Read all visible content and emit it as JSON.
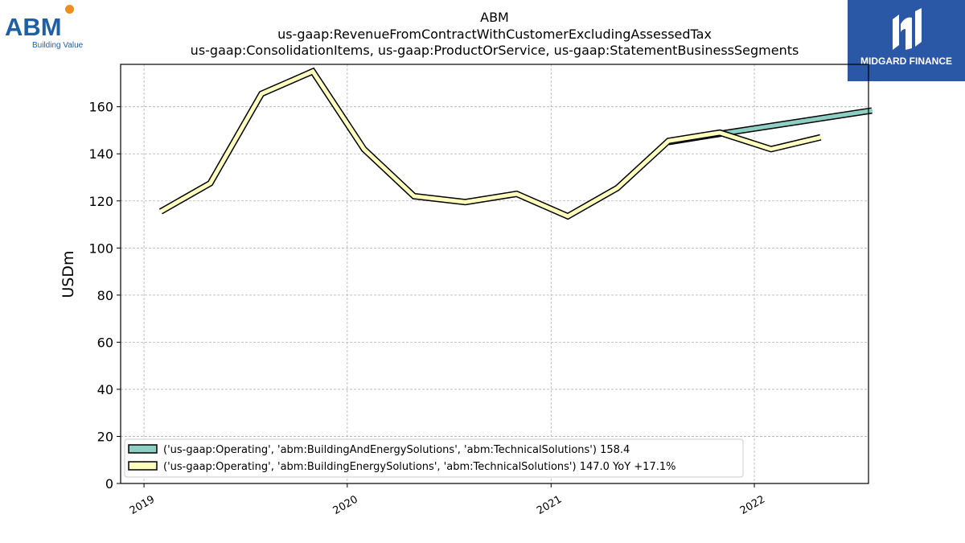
{
  "brand": {
    "company_logo_text": "ABM",
    "company_tagline": "Building Value",
    "publisher_logo_text": "MIDGARD FINANCE"
  },
  "colors": {
    "series_1": "#8ecfc4",
    "series_2": "#ffffbe",
    "outline": "#000000",
    "grid": "#b0b0b0",
    "abm_blue": "#1f5fa8",
    "abm_orange": "#f28c1e",
    "midgard_blue": "#2a57a6"
  },
  "chart_data": {
    "type": "line",
    "title": [
      "ABM",
      "us-gaap:RevenueFromContractWithCustomerExcludingAssessedTax",
      "us-gaap:ConsolidationItems, us-gaap:ProductOrService, us-gaap:StatementBusinessSegments"
    ],
    "xlabel": "",
    "ylabel": "USDm",
    "xlim": [
      "2018-11-20",
      "2022-07-25"
    ],
    "ylim": [
      0,
      178
    ],
    "xticks": [
      "2019",
      "2020",
      "2021",
      "2022"
    ],
    "xtick_dates": [
      "2019-01-01",
      "2020-01-01",
      "2021-01-01",
      "2022-01-01"
    ],
    "yticks": [
      0,
      20,
      40,
      60,
      80,
      100,
      120,
      140,
      160
    ],
    "grid": true,
    "legend_position": "lower-left",
    "series": [
      {
        "name": "('us-gaap:Operating', 'abm:BuildingAndEnergySolutions', 'abm:TechnicalSolutions') 158.4",
        "x": [
          "2021-07-31",
          "2021-10-31",
          "2022-07-31"
        ],
        "y": [
          145.0,
          148.5,
          158.4
        ]
      },
      {
        "name": "('us-gaap:Operating', 'abm:BuildingEnergySolutions', 'abm:TechnicalSolutions') 147.0 YoY +17.1%",
        "x": [
          "2019-01-31",
          "2019-04-30",
          "2019-07-31",
          "2019-10-31",
          "2020-01-31",
          "2020-04-30",
          "2020-07-31",
          "2020-10-31",
          "2021-01-31",
          "2021-04-30",
          "2021-07-31",
          "2021-10-31",
          "2022-01-31",
          "2022-04-30"
        ],
        "y": [
          115.5,
          127.5,
          165.5,
          175.0,
          142.0,
          122.0,
          119.5,
          123.0,
          113.5,
          125.5,
          145.5,
          149.0,
          142.0,
          147.0
        ]
      }
    ]
  }
}
